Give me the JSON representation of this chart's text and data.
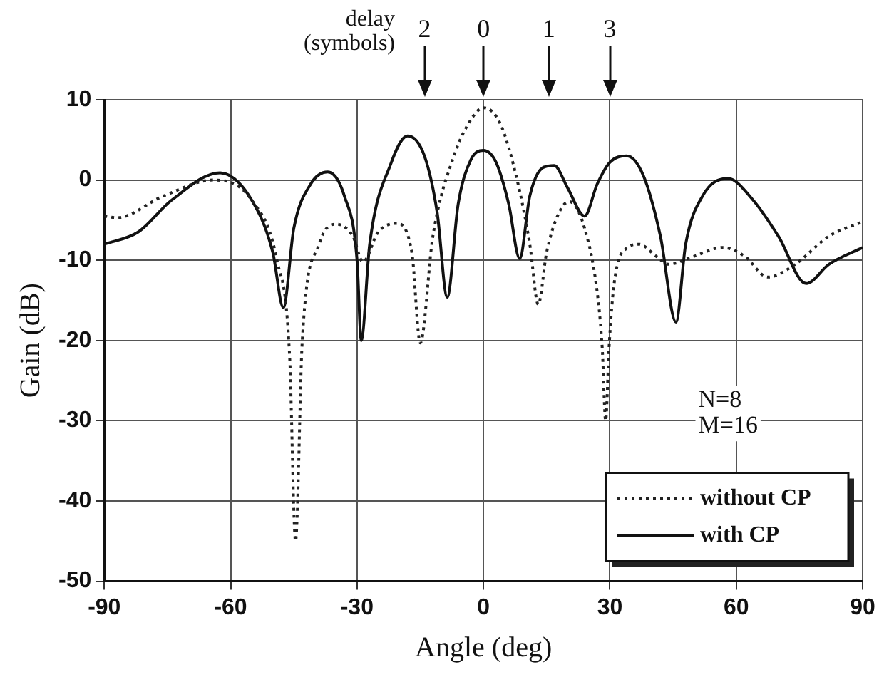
{
  "chart_data": {
    "type": "line",
    "xlabel": "Angle (deg)",
    "ylabel": "Gain (dB)",
    "xlim": [
      -90,
      90
    ],
    "xticks": [
      -90,
      -60,
      -30,
      0,
      30,
      60,
      90
    ],
    "ylim": [
      -50,
      10
    ],
    "yticks": [
      -50,
      -40,
      -30,
      -20,
      -10,
      0,
      10
    ],
    "grid": true,
    "legend": "bottom right",
    "marker": "none",
    "series": [
      {
        "name": "without CP",
        "color": "#222222",
        "line_style": "dotted",
        "x": [
          -90,
          -87,
          -76,
          -64,
          -55,
          -49,
          -46,
          -44.6,
          -43,
          -39,
          -35,
          -31,
          -28.6,
          -25,
          -20.7,
          -17,
          -15,
          -12,
          -7,
          -3,
          0,
          4,
          8,
          11,
          13,
          15,
          18,
          20.4,
          24,
          27,
          28.2,
          29,
          29.8,
          31,
          34,
          37,
          41,
          44,
          50,
          56.8,
          62,
          67.5,
          74,
          82,
          90
        ],
        "values": [
          -4.5,
          -4.7,
          -2,
          0,
          -2.5,
          -10,
          -22,
          -45,
          -20,
          -8,
          -5.5,
          -7,
          -10.2,
          -6.5,
          -5.4,
          -9,
          -20.3,
          -7,
          3,
          7.5,
          9,
          7,
          0,
          -8,
          -15.5,
          -9,
          -4,
          -2.7,
          -6,
          -14,
          -21,
          -30,
          -21,
          -13,
          -8.5,
          -8,
          -9.5,
          -10.5,
          -9.5,
          -8.4,
          -9.5,
          -12.1,
          -10.5,
          -7,
          -5.2
        ]
      },
      {
        "name": "with CP",
        "color": "#111111",
        "line_style": "solid",
        "x": [
          -90,
          -82,
          -74,
          -62.5,
          -55,
          -50,
          -47.5,
          -45,
          -41,
          -37,
          -33,
          -30,
          -29,
          -27,
          -22,
          -18,
          -14,
          -11,
          -8.6,
          -6,
          -3,
          0,
          3,
          6,
          8.6,
          11,
          14,
          16.8,
          20,
          24,
          27,
          30,
          34,
          38,
          42,
          45.7,
          48,
          52,
          58,
          64,
          70,
          76.6,
          82,
          90
        ],
        "values": [
          -8,
          -6.5,
          -2.5,
          0.9,
          -2.5,
          -9,
          -15.9,
          -6,
          -0.5,
          1,
          -2,
          -10,
          -20,
          -8,
          2,
          5.5,
          3,
          -4,
          -14.6,
          -3,
          2.5,
          3.7,
          2.2,
          -3,
          -9.8,
          -2,
          1.5,
          1.8,
          -1,
          -4.5,
          -0.5,
          2.2,
          3,
          0.5,
          -7,
          -17.7,
          -8,
          -2,
          0.2,
          -2.5,
          -7,
          -12.9,
          -10.5,
          -8.4
        ]
      }
    ],
    "annotations": [
      "2",
      "0",
      "1",
      "3",
      "delay\n(symbols)",
      "N=8\nM=16"
    ]
  }
}
